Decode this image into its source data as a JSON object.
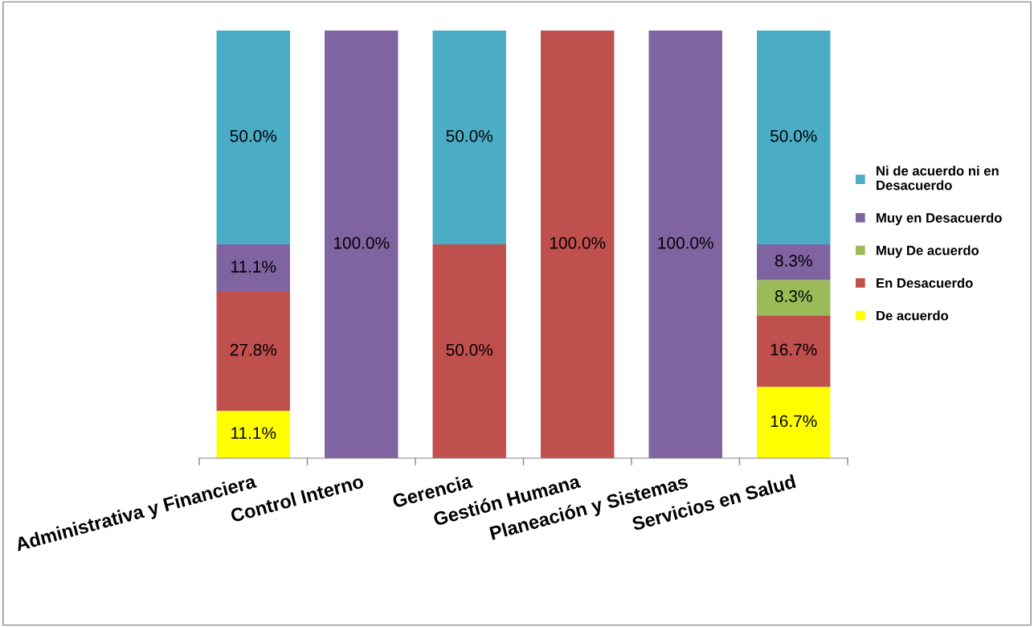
{
  "chart_data": {
    "type": "bar",
    "stacked": true,
    "categories": [
      "Administrativa y Financiera",
      "Control Interno",
      "Gerencia",
      "Gestión Humana",
      "Planeación y Sistemas",
      "Servicios en Salud"
    ],
    "ylim": [
      0,
      100
    ],
    "tick_labels": "x",
    "grid": false,
    "legend": "right",
    "series": [
      {
        "name": "De acuerdo",
        "color": "#ffff00",
        "values": [
          11.1,
          null,
          null,
          null,
          null,
          16.7
        ],
        "value_labels": [
          "11.1%",
          null,
          null,
          null,
          null,
          "16.7%"
        ]
      },
      {
        "name": "En Desacuerdo",
        "color": "#c0504d",
        "values": [
          27.8,
          null,
          50.0,
          100.0,
          null,
          16.7
        ],
        "value_labels": [
          "27.8%",
          null,
          "50.0%",
          "100.0%",
          null,
          "16.7%"
        ]
      },
      {
        "name": "Muy De acuerdo",
        "color": "#9bbb59",
        "values": [
          null,
          null,
          null,
          null,
          null,
          8.3
        ],
        "value_labels": [
          null,
          null,
          null,
          null,
          null,
          "8.3%"
        ]
      },
      {
        "name": "Muy en Desacuerdo",
        "color": "#8064a2",
        "values": [
          11.1,
          100.0,
          null,
          null,
          100.0,
          8.3
        ],
        "value_labels": [
          "11.1%",
          "100.0%",
          null,
          null,
          "100.0%",
          "8.3%"
        ]
      },
      {
        "name": "Ni de acuerdo ni en Desacuerdo",
        "color": "#4bacc6",
        "values": [
          50.0,
          null,
          50.0,
          null,
          null,
          50.0
        ],
        "value_labels": [
          "50.0%",
          null,
          "50.0%",
          null,
          null,
          "50.0%"
        ]
      }
    ]
  }
}
